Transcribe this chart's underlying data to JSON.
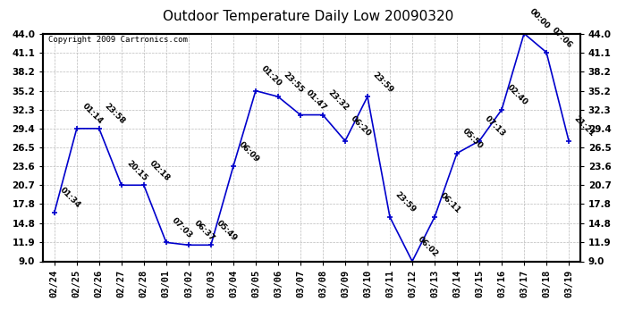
{
  "title": "Outdoor Temperature Daily Low 20090320",
  "copyright": "Copyright 2009 Cartronics.com",
  "x_labels": [
    "02/24",
    "02/25",
    "02/26",
    "02/27",
    "02/28",
    "03/01",
    "03/02",
    "03/03",
    "03/04",
    "03/05",
    "03/06",
    "03/07",
    "03/08",
    "03/09",
    "03/10",
    "03/11",
    "03/12",
    "03/13",
    "03/14",
    "03/15",
    "03/16",
    "03/17",
    "03/18",
    "03/19"
  ],
  "y_values": [
    16.5,
    29.4,
    29.4,
    20.7,
    20.7,
    11.9,
    11.5,
    11.5,
    23.6,
    35.2,
    34.3,
    31.5,
    31.5,
    27.5,
    34.3,
    15.8,
    9.0,
    15.8,
    25.6,
    27.5,
    32.3,
    44.0,
    41.1,
    27.5
  ],
  "point_labels": [
    "01:34",
    "01:14",
    "23:58",
    "20:15",
    "02:18",
    "07:03",
    "06:37",
    "05:49",
    "06:09",
    "01:20",
    "23:55",
    "01:47",
    "23:32",
    "06:20",
    "23:59",
    "23:59",
    "06:02",
    "06:11",
    "05:50",
    "07:13",
    "02:40",
    "00:00",
    "07:06",
    "21:21"
  ],
  "ylim": [
    9.0,
    44.0
  ],
  "yticks": [
    9.0,
    11.9,
    14.8,
    17.8,
    20.7,
    23.6,
    26.5,
    29.4,
    32.3,
    35.2,
    38.2,
    41.1,
    44.0
  ],
  "line_color": "#0000cc",
  "marker_color": "#0000cc",
  "background_color": "#ffffff",
  "grid_color": "#bbbbbb",
  "title_fontsize": 11,
  "label_fontsize": 6.5,
  "tick_fontsize": 7.5,
  "copyright_fontsize": 6.5
}
